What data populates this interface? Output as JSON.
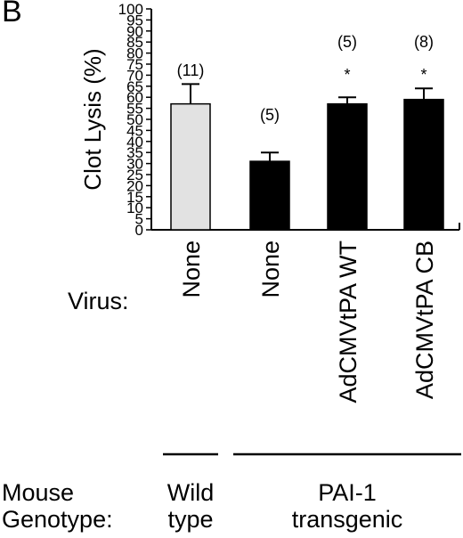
{
  "panel_label": "B",
  "chart_data": {
    "type": "bar",
    "ylabel": "Clot Lysis (%)",
    "ylim": [
      0,
      100
    ],
    "yticks": [
      0,
      5,
      10,
      15,
      20,
      25,
      30,
      35,
      40,
      45,
      50,
      55,
      60,
      65,
      70,
      75,
      80,
      85,
      90,
      95,
      100
    ],
    "categories": [
      "None",
      "None",
      "AdCMVtPA WT",
      "AdCMVtPA CB"
    ],
    "values": [
      57,
      31,
      57,
      59
    ],
    "errors": [
      9,
      4,
      3,
      5
    ],
    "n_labels": [
      "(11)",
      "(5)",
      "(5)",
      "(8)"
    ],
    "significance": [
      "",
      "",
      "*",
      "*"
    ],
    "bar_colors": [
      "#e2e2e2",
      "#000000",
      "#000000",
      "#000000"
    ],
    "grid": false
  },
  "row_labels": {
    "virus": "Virus:",
    "mouse": "Mouse",
    "genotype": "Genotype:"
  },
  "groups": {
    "wild": [
      "Wild",
      "type"
    ],
    "pai": [
      "PAI-1",
      "transgenic"
    ]
  }
}
